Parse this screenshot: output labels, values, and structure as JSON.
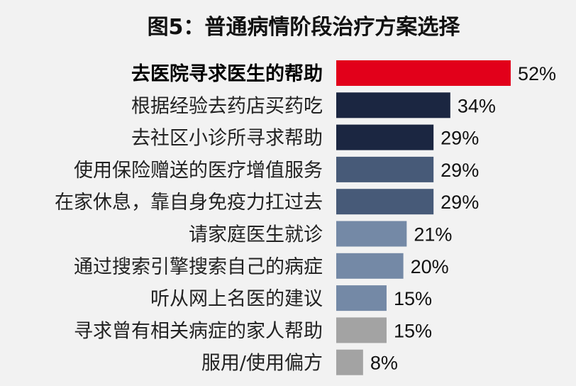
{
  "chart_data": {
    "type": "bar",
    "orientation": "horizontal",
    "title": "图5：普通病情阶段治疗方案选择",
    "categories": [
      "去医院寻求医生的帮助",
      "根据经验去药店买药吃",
      "去社区小诊所寻求帮助",
      "使用保险赠送的医疗增值服务",
      "在家休息，靠自身免疫力扛过去",
      "请家庭医生就诊",
      "通过搜索引擎搜索自己的病症",
      "听从网上名医的建议",
      "寻求曾有相关病症的家人帮助",
      "服用/使用偏方"
    ],
    "values": [
      52,
      34,
      29,
      29,
      29,
      21,
      20,
      15,
      15,
      8
    ],
    "value_labels": [
      "52%",
      "34%",
      "29%",
      "29%",
      "29%",
      "21%",
      "20%",
      "15%",
      "15%",
      "8%"
    ],
    "colors": [
      "#e2001a",
      "#1b2641",
      "#1b2641",
      "#475a78",
      "#475a78",
      "#7489a6",
      "#7489a6",
      "#7489a6",
      "#a3a3a3",
      "#a3a3a3"
    ],
    "highlight_index": 0,
    "grid": false,
    "legend": "none"
  }
}
